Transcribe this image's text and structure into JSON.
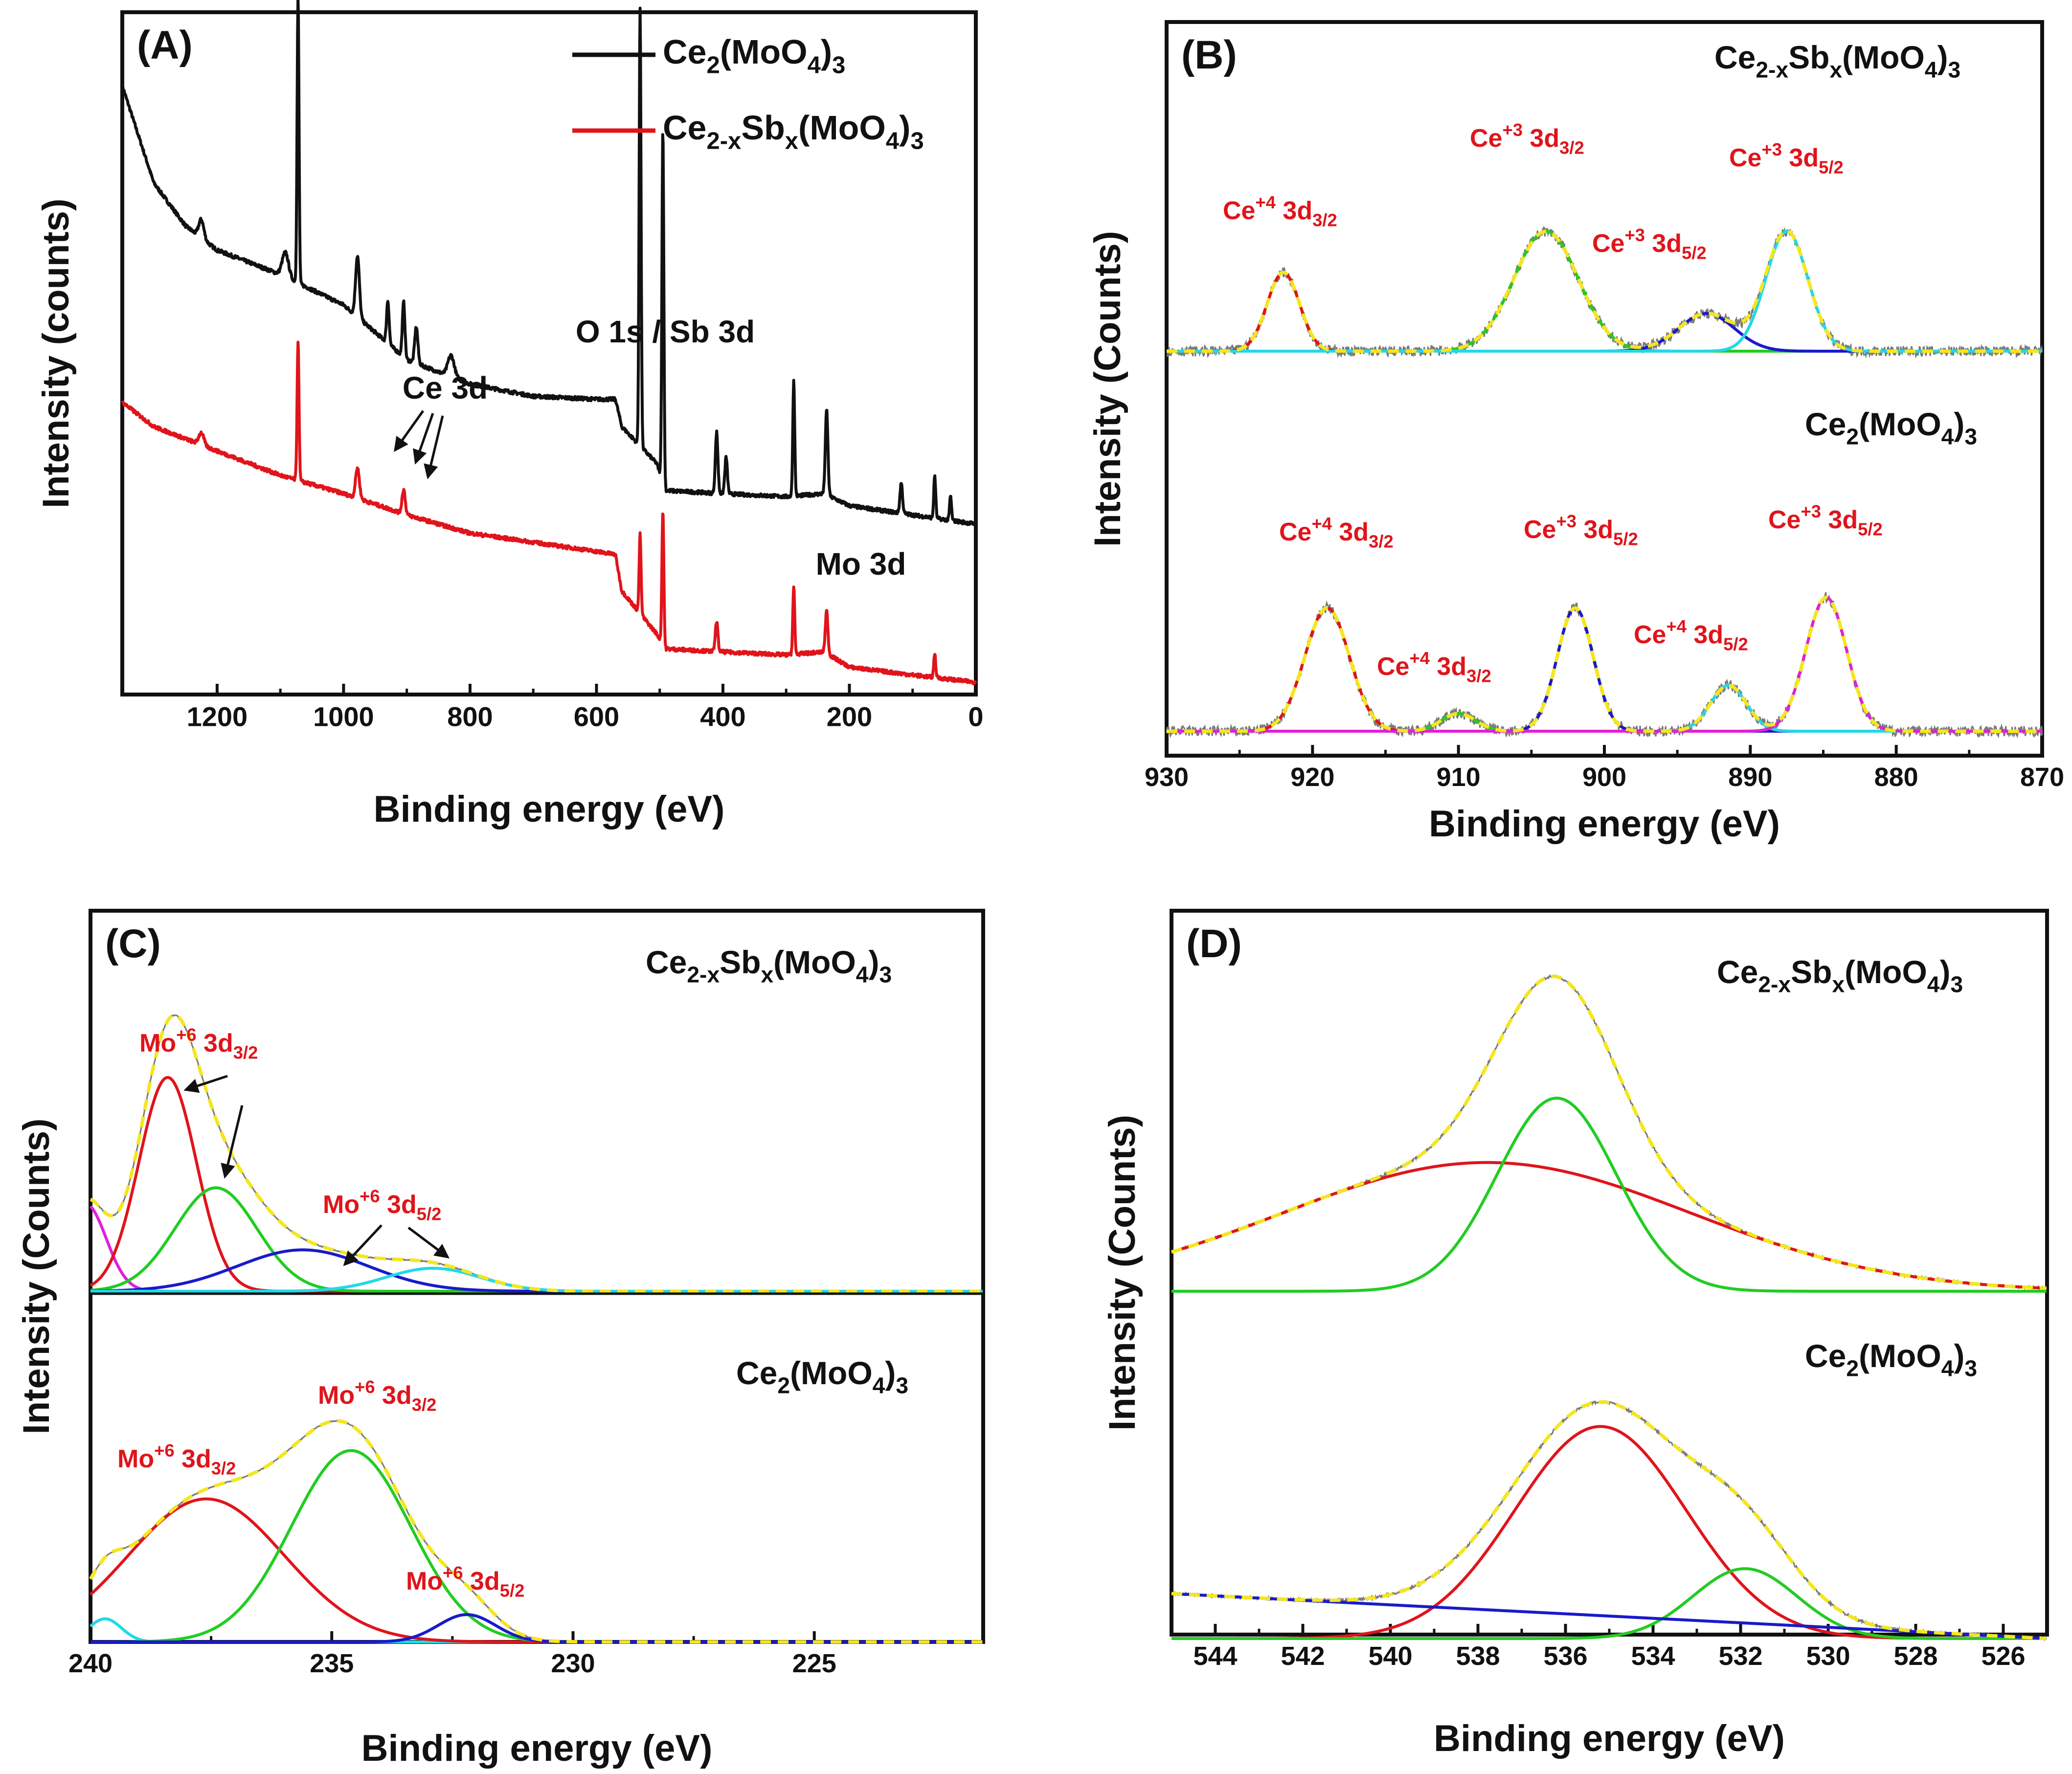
{
  "colors": {
    "black": "#111111",
    "red": "#e0141b",
    "green": "#22cc22",
    "blue": "#1a1acc",
    "cyan": "#22d8e8",
    "magenta": "#e020d8",
    "yellow": "#f5e61e",
    "gray": "#7a7a7a"
  },
  "chart_data": [
    {
      "id": "A",
      "type": "line",
      "panel_label": "(A)",
      "xlabel": "Binding energy (eV)",
      "ylabel": "Intensity (counts)",
      "xlim": [
        1350,
        0
      ],
      "xticks": [
        1200,
        1000,
        800,
        600,
        400,
        200,
        0
      ],
      "legend": [
        {
          "base": "Ce",
          "sub1": "2",
          "mid": "(MoO",
          "sub2": "4",
          "end": ")",
          "sub3": "3",
          "color": "black"
        },
        {
          "base": "Ce",
          "sub1": "2-x",
          "mid": "Sb",
          "sub2": "x",
          "end": "(MoO",
          "sub3": "4",
          "end2": ")",
          "sub4": "3",
          "color": "red"
        }
      ],
      "annotations": {
        "ce3d": "Ce 3d",
        "o1s": "O 1s / Sb 3d",
        "mo3d": "Mo 3d"
      },
      "series": [
        {
          "name": "Ce2(MoO4)3",
          "color": "black",
          "offset": 0.26,
          "baseline": [
            [
              1350,
              0.72
            ],
            [
              1300,
              0.56
            ],
            [
              1250,
              0.49
            ],
            [
              1200,
              0.45
            ],
            [
              1100,
              0.41
            ],
            [
              1000,
              0.36
            ],
            [
              900,
              0.27
            ],
            [
              800,
              0.23
            ],
            [
              700,
              0.21
            ],
            [
              600,
              0.205
            ],
            [
              570,
              0.205
            ],
            [
              560,
              0.16
            ],
            [
              505,
              0.1
            ],
            [
              490,
              0.055
            ],
            [
              400,
              0.05
            ],
            [
              300,
              0.045
            ],
            [
              240,
              0.05
            ],
            [
              200,
              0.03
            ],
            [
              100,
              0.015
            ],
            [
              0,
              0.0
            ]
          ],
          "peaks": [
            [
              1225,
              0.03,
              8
            ],
            [
              1072,
              0.47,
              3
            ],
            [
              1092,
              0.04,
              10
            ],
            [
              978,
              0.1,
              6
            ],
            [
              930,
              0.07,
              4
            ],
            [
              905,
              0.09,
              4
            ],
            [
              885,
              0.06,
              5
            ],
            [
              830,
              0.035,
              10
            ],
            [
              531,
              0.72,
              3
            ],
            [
              495,
              0.58,
              3
            ],
            [
              410,
              0.1,
              4
            ],
            [
              395,
              0.06,
              4
            ],
            [
              288,
              0.19,
              3
            ],
            [
              236,
              0.14,
              4
            ],
            [
              118,
              0.05,
              4
            ],
            [
              65,
              0.07,
              3
            ],
            [
              40,
              0.04,
              3
            ]
          ]
        },
        {
          "name": "Ce2-xSbx(MoO4)3",
          "color": "red",
          "offset": 0.0,
          "baseline": [
            [
              1350,
              0.46
            ],
            [
              1300,
              0.42
            ],
            [
              1200,
              0.38
            ],
            [
              1100,
              0.34
            ],
            [
              1000,
              0.31
            ],
            [
              900,
              0.275
            ],
            [
              800,
              0.245
            ],
            [
              700,
              0.23
            ],
            [
              600,
              0.215
            ],
            [
              570,
              0.21
            ],
            [
              560,
              0.15
            ],
            [
              505,
              0.08
            ],
            [
              490,
              0.055
            ],
            [
              400,
              0.05
            ],
            [
              300,
              0.045
            ],
            [
              240,
              0.05
            ],
            [
              200,
              0.025
            ],
            [
              100,
              0.012
            ],
            [
              0,
              0.0
            ]
          ],
          "peaks": [
            [
              1225,
              0.02,
              8
            ],
            [
              1072,
              0.23,
              3
            ],
            [
              978,
              0.05,
              6
            ],
            [
              905,
              0.04,
              5
            ],
            [
              531,
              0.13,
              3
            ],
            [
              495,
              0.22,
              3
            ],
            [
              410,
              0.05,
              4
            ],
            [
              288,
              0.11,
              3
            ],
            [
              236,
              0.07,
              4
            ],
            [
              65,
              0.04,
              3
            ]
          ]
        }
      ]
    },
    {
      "id": "B",
      "type": "line",
      "panel_label": "(B)",
      "xlabel": "Binding energy (eV)",
      "ylabel": "Intensity (Counts)",
      "xlim": [
        930,
        870
      ],
      "xticks": [
        930,
        920,
        910,
        900,
        890,
        880,
        870
      ],
      "sample_labels": [
        {
          "base": "Ce",
          "sub1": "2-x",
          "mid": "Sb",
          "sub2": "x",
          "end": "(MoO",
          "sub3": "4",
          "end2": ")",
          "sub4": "3"
        },
        {
          "base": "Ce",
          "sub1": "2",
          "mid": "(MoO",
          "sub2": "4",
          "end": ")",
          "sub3": "3"
        }
      ],
      "peak_labels_top": [
        {
          "main": "Ce",
          "sup": "+4",
          "orb": "3d",
          "sub": "3/2"
        },
        {
          "main": "Ce",
          "sup": "+3",
          "orb": "3d",
          "sub": "3/2"
        },
        {
          "main": "Ce",
          "sup": "+3",
          "orb": "3d",
          "sub": "5/2"
        },
        {
          "main": "Ce",
          "sup": "+3",
          "orb": "3d",
          "sub": "5/2"
        }
      ],
      "peak_labels_bottom": [
        {
          "main": "Ce",
          "sup": "+4",
          "orb": "3d",
          "sub": "3/2"
        },
        {
          "main": "Ce",
          "sup": "+4",
          "orb": "3d",
          "sub": "3/2"
        },
        {
          "main": "Ce",
          "sup": "+3",
          "orb": "3d",
          "sub": "5/2"
        },
        {
          "main": "Ce",
          "sup": "+4",
          "orb": "3d",
          "sub": "5/2"
        },
        {
          "main": "Ce",
          "sup": "+3",
          "orb": "3d",
          "sub": "5/2"
        }
      ],
      "traces": [
        {
          "group": "top",
          "baseline": 0.0,
          "fit_color": "yellow",
          "components": [
            {
              "color": "red",
              "center": 922,
              "amp": 0.46,
              "fwhm": 2.6
            },
            {
              "color": "green",
              "center": 904,
              "amp": 0.7,
              "fwhm": 5.2
            },
            {
              "color": "blue",
              "center": 893,
              "amp": 0.22,
              "fwhm": 4.5
            },
            {
              "color": "cyan",
              "center": 887.5,
              "amp": 0.7,
              "fwhm": 3.4
            }
          ]
        },
        {
          "group": "bottom",
          "baseline": 0.0,
          "fit_color": "yellow",
          "components": [
            {
              "color": "red",
              "center": 919,
              "amp": 0.7,
              "fwhm": 3.6
            },
            {
              "color": "green",
              "center": 910,
              "amp": 0.1,
              "fwhm": 2.8
            },
            {
              "color": "blue",
              "center": 902,
              "amp": 0.7,
              "fwhm": 2.9
            },
            {
              "color": "cyan",
              "center": 891.5,
              "amp": 0.26,
              "fwhm": 2.9
            },
            {
              "color": "magenta",
              "center": 884.8,
              "amp": 0.76,
              "fwhm": 3.3
            }
          ]
        }
      ]
    },
    {
      "id": "C",
      "type": "line",
      "panel_label": "(C)",
      "xlabel": "Binding energy (eV)",
      "ylabel": "Intensity (Counts)",
      "xlim": [
        240,
        221.5
      ],
      "xticks": [
        240,
        235,
        230,
        225
      ],
      "sample_labels": [
        {
          "base": "Ce",
          "sub1": "2-x",
          "mid": "Sb",
          "sub2": "x",
          "end": "(MoO",
          "sub3": "4",
          "end2": ")",
          "sub4": "3"
        },
        {
          "base": "Ce",
          "sub1": "2",
          "mid": "(MoO",
          "sub2": "4",
          "end": ")",
          "sub3": "3"
        }
      ],
      "peak_labels": [
        {
          "main": "Mo",
          "sup": "+6",
          "orb": "3d",
          "sub": "3/2"
        },
        {
          "main": "Mo",
          "sup": "+6",
          "orb": "3d",
          "sub": "5/2"
        },
        {
          "main": "Mo",
          "sup": "+6",
          "orb": "3d",
          "sub": "3/2"
        },
        {
          "main": "Mo",
          "sup": "+6",
          "orb": "3d",
          "sub": "3/2"
        },
        {
          "main": "Mo",
          "sup": "+6",
          "orb": "3d",
          "sub": "5/2"
        }
      ],
      "traces": [
        {
          "group": "top",
          "fit_color": "yellow",
          "components": [
            {
              "color": "magenta",
              "center": 240.1,
              "amp": 0.38,
              "fwhm": 1.0
            },
            {
              "color": "red",
              "center": 238.4,
              "amp": 0.93,
              "fwhm": 1.4
            },
            {
              "color": "green",
              "center": 237.4,
              "amp": 0.45,
              "fwhm": 2.0
            },
            {
              "color": "blue",
              "center": 235.6,
              "amp": 0.18,
              "fwhm": 3.2
            },
            {
              "color": "cyan",
              "center": 232.9,
              "amp": 0.1,
              "fwhm": 2.3
            }
          ]
        },
        {
          "group": "bottom",
          "fit_color": "yellow",
          "components": [
            {
              "color": "cyan",
              "center": 239.7,
              "amp": 0.11,
              "fwhm": 0.8
            },
            {
              "color": "red",
              "center": 237.6,
              "amp": 0.68,
              "fwhm": 3.8
            },
            {
              "color": "green",
              "center": 234.6,
              "amp": 0.91,
              "fwhm": 2.9
            },
            {
              "color": "blue",
              "center": 232.2,
              "amp": 0.13,
              "fwhm": 1.4
            }
          ]
        }
      ]
    },
    {
      "id": "D",
      "type": "line",
      "panel_label": "(D)",
      "xlabel": "Binding energy (eV)",
      "ylabel": "Intensity (Counts)",
      "xlim": [
        545,
        525
      ],
      "xticks": [
        544,
        542,
        540,
        538,
        536,
        534,
        532,
        530,
        528,
        526
      ],
      "sample_labels": [
        {
          "base": "Ce",
          "sub1": "2-x",
          "mid": "Sb",
          "sub2": "x",
          "end": "(MoO",
          "sub3": "4",
          "end2": ")",
          "sub4": "3"
        },
        {
          "base": "Ce",
          "sub1": "2",
          "mid": "(MoO",
          "sub2": "4",
          "end": ")",
          "sub3": "3"
        }
      ],
      "traces": [
        {
          "group": "top",
          "fit_color": "yellow",
          "components": [
            {
              "color": "red",
              "center": 537.8,
              "amp": 0.56,
              "fwhm": 11.0
            },
            {
              "color": "green",
              "center": 536.2,
              "amp": 0.84,
              "fwhm": 3.2
            }
          ]
        },
        {
          "group": "bottom",
          "fit_color": "yellow",
          "components": [
            {
              "color": "red",
              "center": 535.2,
              "amp": 0.85,
              "fwhm": 4.6
            },
            {
              "color": "green",
              "center": 531.9,
              "amp": 0.28,
              "fwhm": 2.8
            }
          ],
          "linear_bg": [
            [
              545,
              0.18
            ],
            [
              525,
              0.0
            ]
          ]
        }
      ]
    }
  ]
}
